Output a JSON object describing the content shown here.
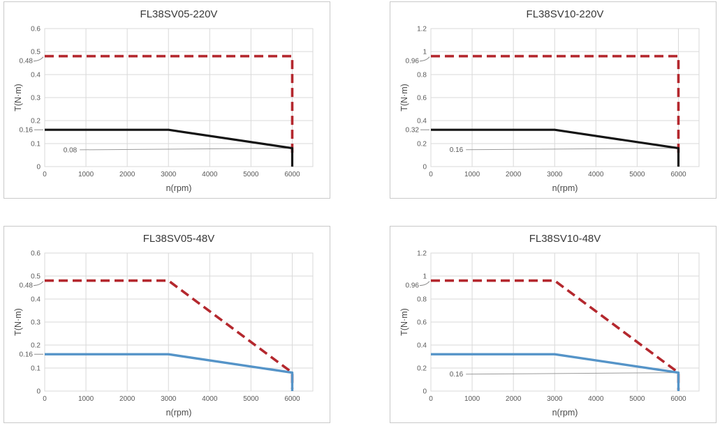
{
  "page": {
    "background": "#ffffff"
  },
  "colors": {
    "peak_torque": "#b4282e",
    "rated_torque_220v": "#141414",
    "rated_torque_48v": "#5594c8",
    "grid": "#d9d9d9",
    "panel_border": "#c9c9c9",
    "tick_text": "#595959",
    "title_text": "#383838",
    "axis_label_text": "#4a4a4a",
    "annotation_line": "#9a9a9a",
    "annotation_text": "#595959",
    "callout_leader": "#8c8c8c"
  },
  "chart_data": [
    {
      "id": "fl38sv05-220v",
      "type": "line",
      "title": "FL38SV05-220V",
      "xlabel": "n(rpm)",
      "ylabel": "T(N·m)",
      "xlim": [
        0,
        6500
      ],
      "ylim": [
        0,
        0.6
      ],
      "grid": true,
      "legend": "none",
      "x_tick_values": [
        0,
        1000,
        2000,
        3000,
        4000,
        5000,
        6000
      ],
      "x_tick_labels": [
        "0",
        "1000",
        "2000",
        "3000",
        "4000",
        "5000",
        "6000"
      ],
      "y_tick_values": [
        0,
        0.1,
        0.2,
        0.3,
        0.4,
        0.5,
        0.6
      ],
      "y_tick_labels": [
        "0",
        "0.1",
        "0.2",
        "0.3",
        "0.4",
        "0.5",
        "0.6"
      ],
      "y_callouts": [
        {
          "label": "0.48",
          "value": 0.48,
          "nudge": 7
        },
        {
          "label": "0.16",
          "value": 0.16,
          "nudge": 0
        }
      ],
      "series": [
        {
          "name": "peak-torque",
          "color": "#b4282e",
          "dash": true,
          "width": 3.6,
          "points": [
            [
              0,
              0.48
            ],
            [
              6000,
              0.48
            ],
            [
              6000,
              0.05
            ]
          ]
        },
        {
          "name": "rated-torque",
          "color": "#141414",
          "dash": false,
          "width": 3.2,
          "points": [
            [
              0,
              0.16
            ],
            [
              3000,
              0.16
            ],
            [
              6000,
              0.08
            ],
            [
              6000,
              0
            ]
          ]
        }
      ],
      "annotation": {
        "label": "0.08",
        "line": [
          [
            850,
            0.073
          ],
          [
            6000,
            0.08
          ]
        ]
      }
    },
    {
      "id": "fl38sv10-220v",
      "type": "line",
      "title": "FL38SV10-220V",
      "xlabel": "n(rpm)",
      "ylabel": "T(N·m)",
      "xlim": [
        0,
        6500
      ],
      "ylim": [
        0,
        1.2
      ],
      "grid": true,
      "legend": "none",
      "x_tick_values": [
        0,
        1000,
        2000,
        3000,
        4000,
        5000,
        6000
      ],
      "x_tick_labels": [
        "0",
        "1000",
        "2000",
        "3000",
        "4000",
        "5000",
        "6000"
      ],
      "y_tick_values": [
        0,
        0.2,
        0.4,
        0.6,
        0.8,
        1.0,
        1.2
      ],
      "y_tick_labels": [
        "0",
        "0.2",
        "0.4",
        "0.6",
        "0.8",
        "1",
        "1.2"
      ],
      "y_callouts": [
        {
          "label": "0.96",
          "value": 0.96,
          "nudge": 7
        },
        {
          "label": "0.32",
          "value": 0.32,
          "nudge": 0
        }
      ],
      "series": [
        {
          "name": "peak-torque",
          "color": "#b4282e",
          "dash": true,
          "width": 3.6,
          "points": [
            [
              0,
              0.96
            ],
            [
              6000,
              0.96
            ],
            [
              6000,
              0.1
            ]
          ]
        },
        {
          "name": "rated-torque",
          "color": "#141414",
          "dash": false,
          "width": 3.2,
          "points": [
            [
              0,
              0.32
            ],
            [
              3000,
              0.32
            ],
            [
              6000,
              0.16
            ],
            [
              6000,
              0
            ]
          ]
        }
      ],
      "annotation": {
        "label": "0.16",
        "line": [
          [
            850,
            0.147
          ],
          [
            6000,
            0.16
          ]
        ]
      }
    },
    {
      "id": "fl38sv05-48v",
      "type": "line",
      "title": "FL38SV05-48V",
      "xlabel": "n(rpm)",
      "ylabel": "T(N·m)",
      "xlim": [
        0,
        6500
      ],
      "ylim": [
        0,
        0.6
      ],
      "grid": true,
      "legend": "none",
      "x_tick_values": [
        0,
        1000,
        2000,
        3000,
        4000,
        5000,
        6000
      ],
      "x_tick_labels": [
        "0",
        "1000",
        "2000",
        "3000",
        "4000",
        "5000",
        "6000"
      ],
      "y_tick_values": [
        0,
        0.1,
        0.2,
        0.3,
        0.4,
        0.5,
        0.6
      ],
      "y_tick_labels": [
        "0",
        "0.1",
        "0.2",
        "0.3",
        "0.4",
        "0.5",
        "0.6"
      ],
      "y_callouts": [
        {
          "label": "0.48",
          "value": 0.48,
          "nudge": 7
        },
        {
          "label": "0.16",
          "value": 0.16,
          "nudge": 0
        }
      ],
      "series": [
        {
          "name": "peak-torque",
          "color": "#b4282e",
          "dash": true,
          "width": 3.6,
          "points": [
            [
              0,
              0.48
            ],
            [
              3000,
              0.48
            ],
            [
              6000,
              0.08
            ],
            [
              6000,
              0.01
            ]
          ]
        },
        {
          "name": "rated-torque",
          "color": "#5594c8",
          "dash": false,
          "width": 3.4,
          "points": [
            [
              0,
              0.16
            ],
            [
              3000,
              0.16
            ],
            [
              6000,
              0.08
            ],
            [
              6000,
              0
            ]
          ]
        }
      ],
      "annotation": null
    },
    {
      "id": "fl38sv10-48v",
      "type": "line",
      "title": "FL38SV10-48V",
      "xlabel": "n(rpm)",
      "ylabel": "T(N·m)",
      "xlim": [
        0,
        6500
      ],
      "ylim": [
        0,
        1.2
      ],
      "grid": true,
      "legend": "none",
      "x_tick_values": [
        0,
        1000,
        2000,
        3000,
        4000,
        5000,
        6000
      ],
      "x_tick_labels": [
        "0",
        "1000",
        "2000",
        "3000",
        "4000",
        "5000",
        "6000"
      ],
      "y_tick_values": [
        0,
        0.2,
        0.4,
        0.6,
        0.8,
        1.0,
        1.2
      ],
      "y_tick_labels": [
        "0",
        "0.2",
        "0.4",
        "0.6",
        "0.8",
        "1",
        "1.2"
      ],
      "y_callouts": [
        {
          "label": "0.96",
          "value": 0.96,
          "nudge": 7
        }
      ],
      "series": [
        {
          "name": "peak-torque",
          "color": "#b4282e",
          "dash": true,
          "width": 3.6,
          "points": [
            [
              0,
              0.96
            ],
            [
              3000,
              0.96
            ],
            [
              6000,
              0.16
            ],
            [
              6000,
              0.01
            ]
          ]
        },
        {
          "name": "rated-torque",
          "color": "#5594c8",
          "dash": false,
          "width": 3.4,
          "points": [
            [
              0,
              0.32
            ],
            [
              3000,
              0.32
            ],
            [
              6000,
              0.16
            ],
            [
              6000,
              0
            ]
          ]
        }
      ],
      "annotation": {
        "label": "0.16",
        "line": [
          [
            850,
            0.147
          ],
          [
            6000,
            0.16
          ]
        ]
      }
    }
  ]
}
